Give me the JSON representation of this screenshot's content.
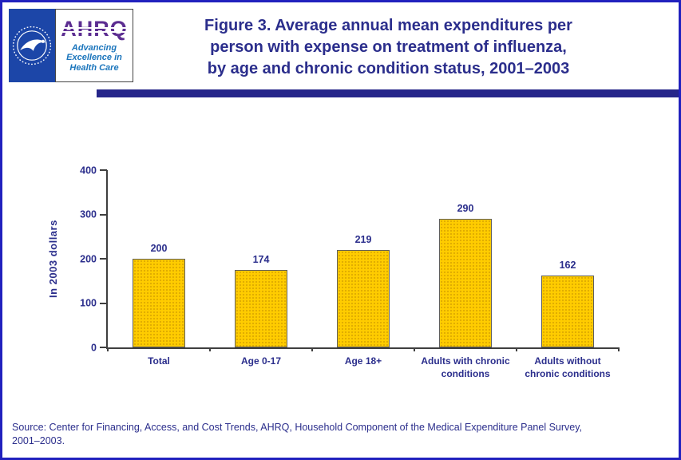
{
  "theme": {
    "navy": "#2B2E8C",
    "divider": "#26268A",
    "border_blue": "#2121BE",
    "hhs_blue": "#1C46A8",
    "ahrq_purple": "#5C2D91",
    "ahrq_blue": "#1B75BC",
    "bar_gold": "#FFCC00",
    "axis": "#3F3F3F"
  },
  "header": {
    "title_lines": [
      "Figure 3. Average annual mean expenditures per",
      "person with expense on treatment of influenza,",
      "by age and chronic condition status, 2001–2003"
    ],
    "logos": {
      "hhs_seal_icon": "hhs-eagle-seal",
      "ahrq_acronym": "AHRQ",
      "ahrq_tagline_lines": [
        "Advancing",
        "Excellence in",
        "Health Care"
      ]
    }
  },
  "chart_data": {
    "type": "bar",
    "categories": [
      "Total",
      "Age 0-17",
      "Age 18+",
      "Adults with chronic conditions",
      "Adults without chronic conditions"
    ],
    "values": [
      200,
      174,
      219,
      290,
      162
    ],
    "title": "Average annual mean expenditures per person with expense on treatment of influenza, by age and chronic condition status, 2001–2003",
    "xlabel": "",
    "ylabel": "In 2003 dollars",
    "ylim": [
      0,
      400
    ],
    "yticks": [
      0,
      100,
      200,
      300,
      400
    ],
    "grid": false,
    "legend": "none",
    "bar_color": "#FFCC00",
    "bar_border": "#5F5F5F"
  },
  "footer": {
    "source_lines": [
      "Source: Center for Financing, Access, and Cost Trends, AHRQ, Household Component of the Medical Expenditure Panel Survey,",
      "2001–2003."
    ]
  }
}
